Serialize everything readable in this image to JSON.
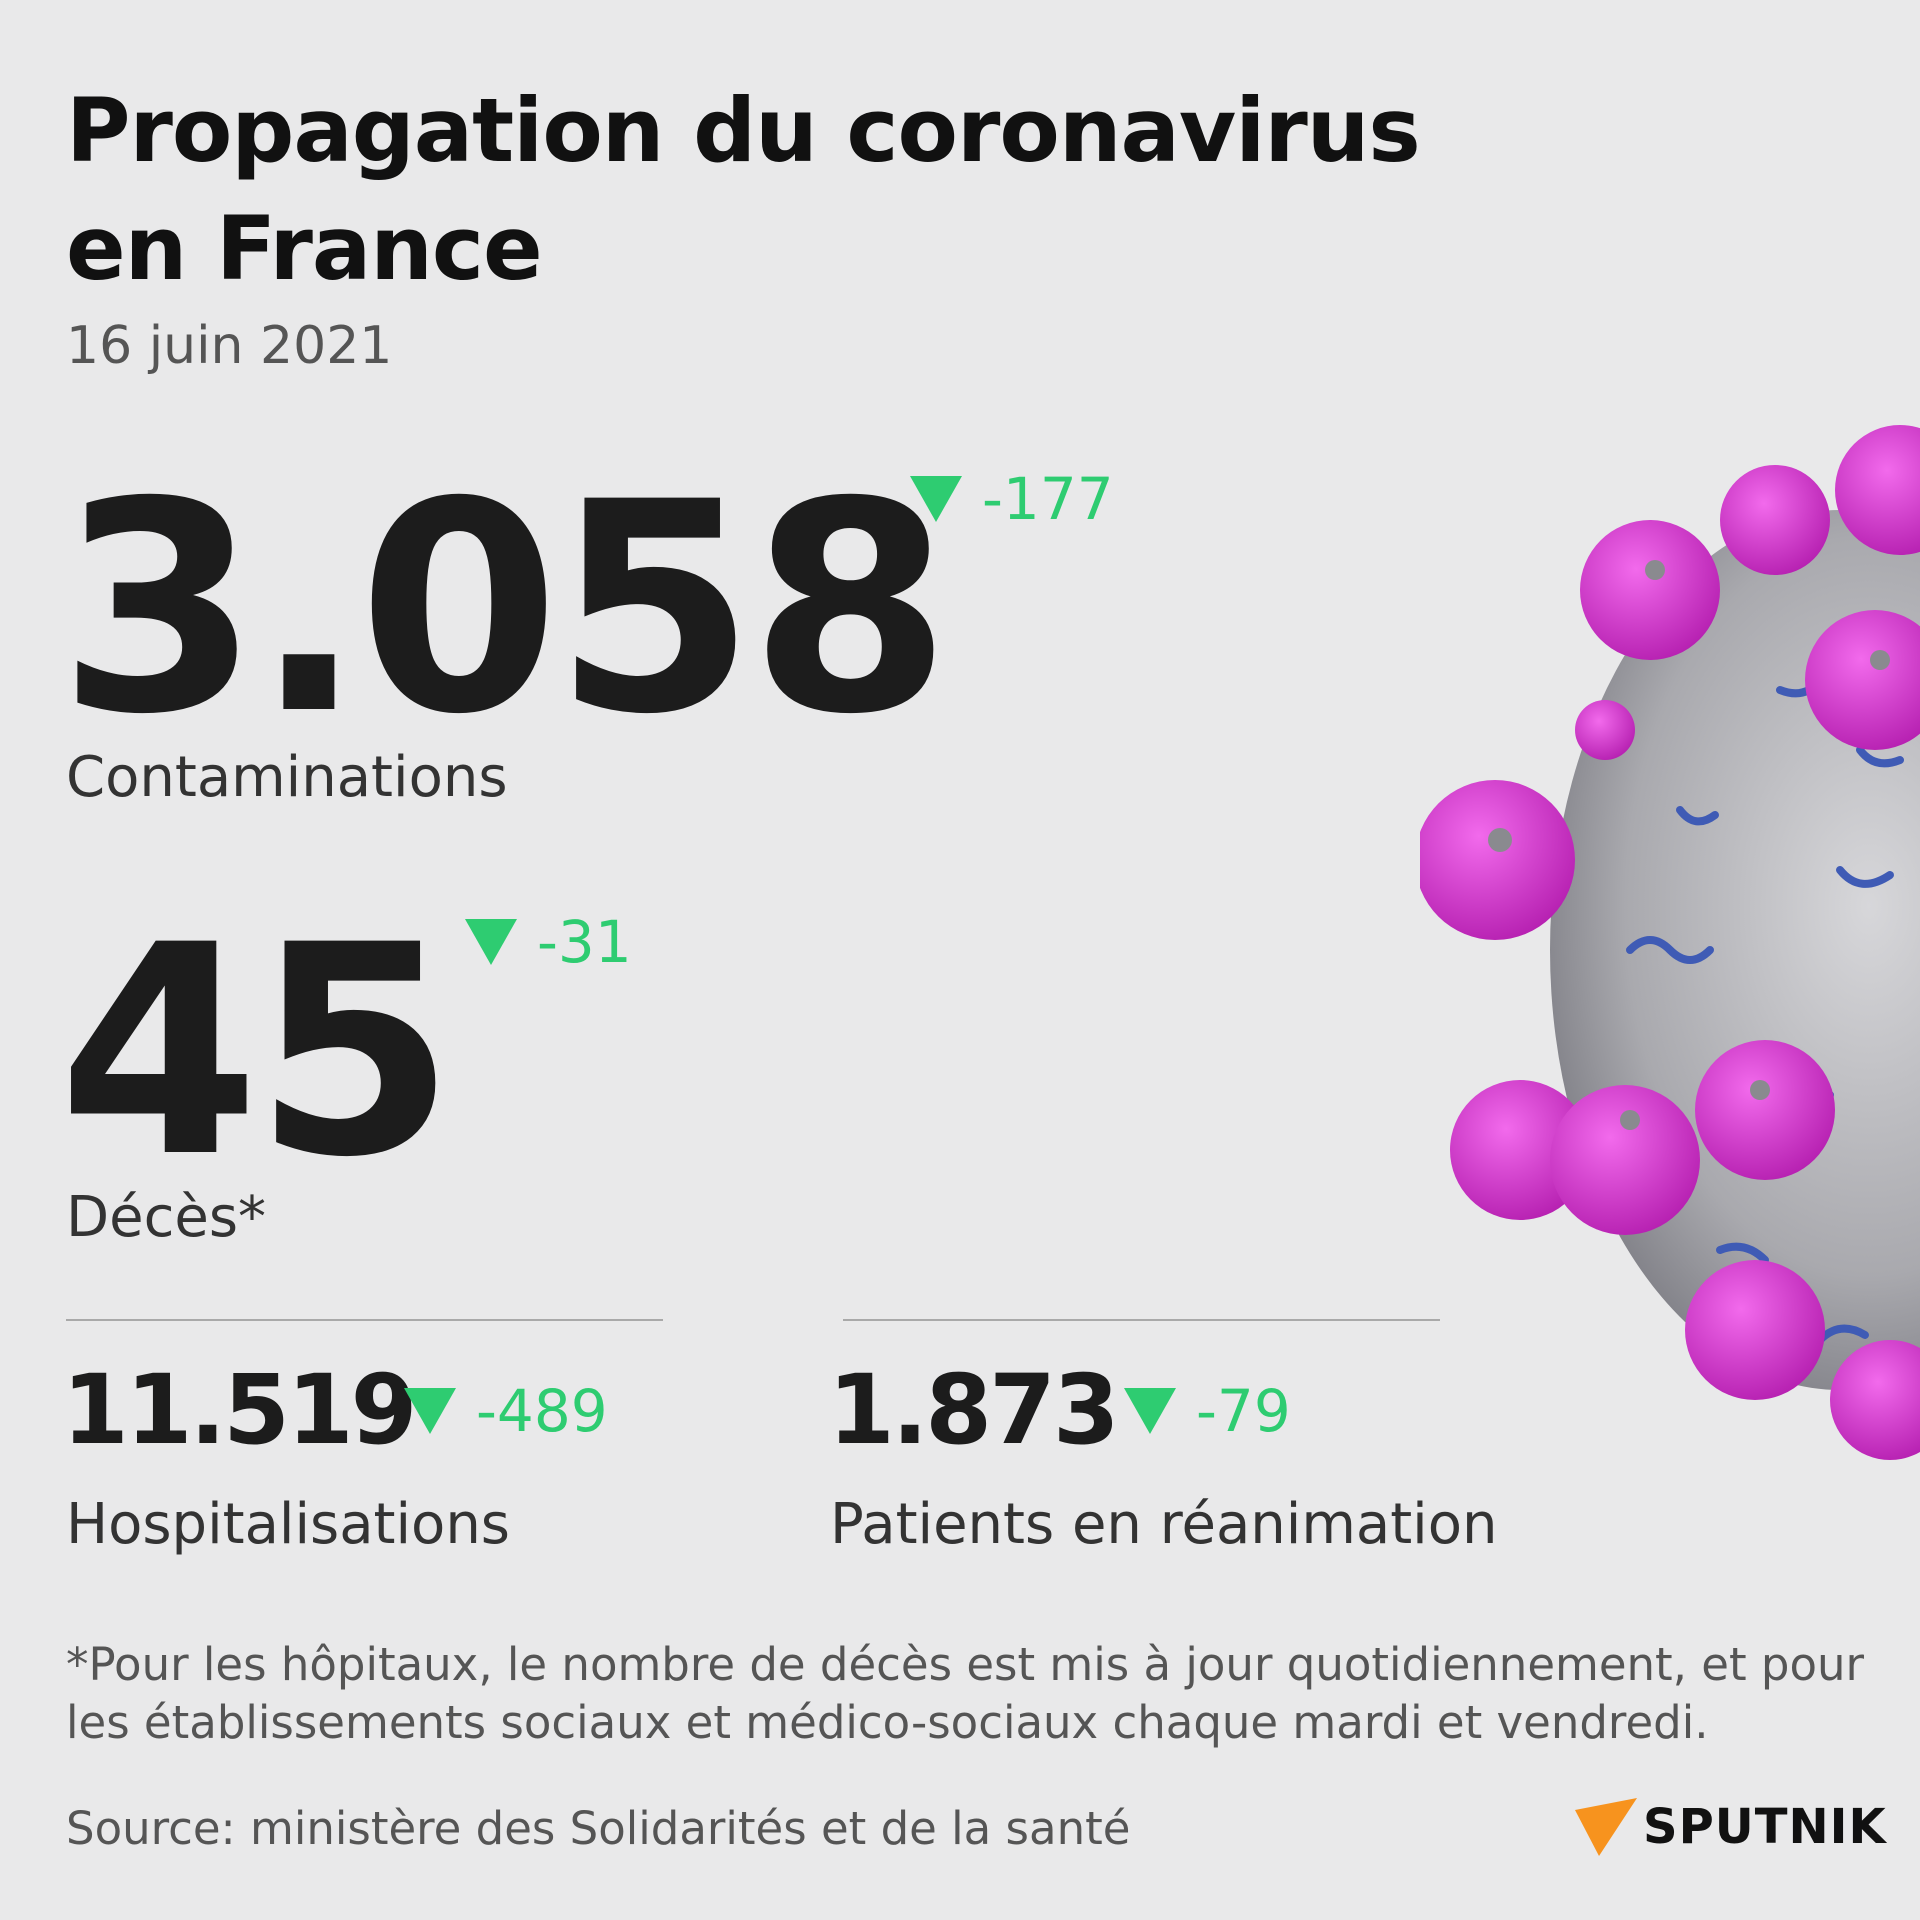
{
  "title": "Propagation du coronavirus en France",
  "date": "16 juin 2021",
  "contaminations": {
    "value": "3.058",
    "delta": "-177",
    "label": "Contaminations"
  },
  "deces": {
    "value": "45",
    "delta": "-31",
    "label": "Décès*"
  },
  "hospitalisations": {
    "value": "11.519",
    "delta": "-489",
    "label": "Hospitalisations"
  },
  "reanimation": {
    "value": "1.873",
    "delta": "-79",
    "label": "Patients en réanimation"
  },
  "footnote": "*Pour les hôpitaux, le nombre de décès est mis à jour quotidiennement, et pour les établissements sociaux et médico-sociaux chaque mardi et vendredi.",
  "source": "Source: ministère des Solidarités et de la santé",
  "brand": "SPUTNIK",
  "colors": {
    "delta_down": "#2ecc71",
    "virus_spike": "#d63ad0",
    "virus_body": "#b9b9bd",
    "logo_accent": "#f7931e"
  }
}
